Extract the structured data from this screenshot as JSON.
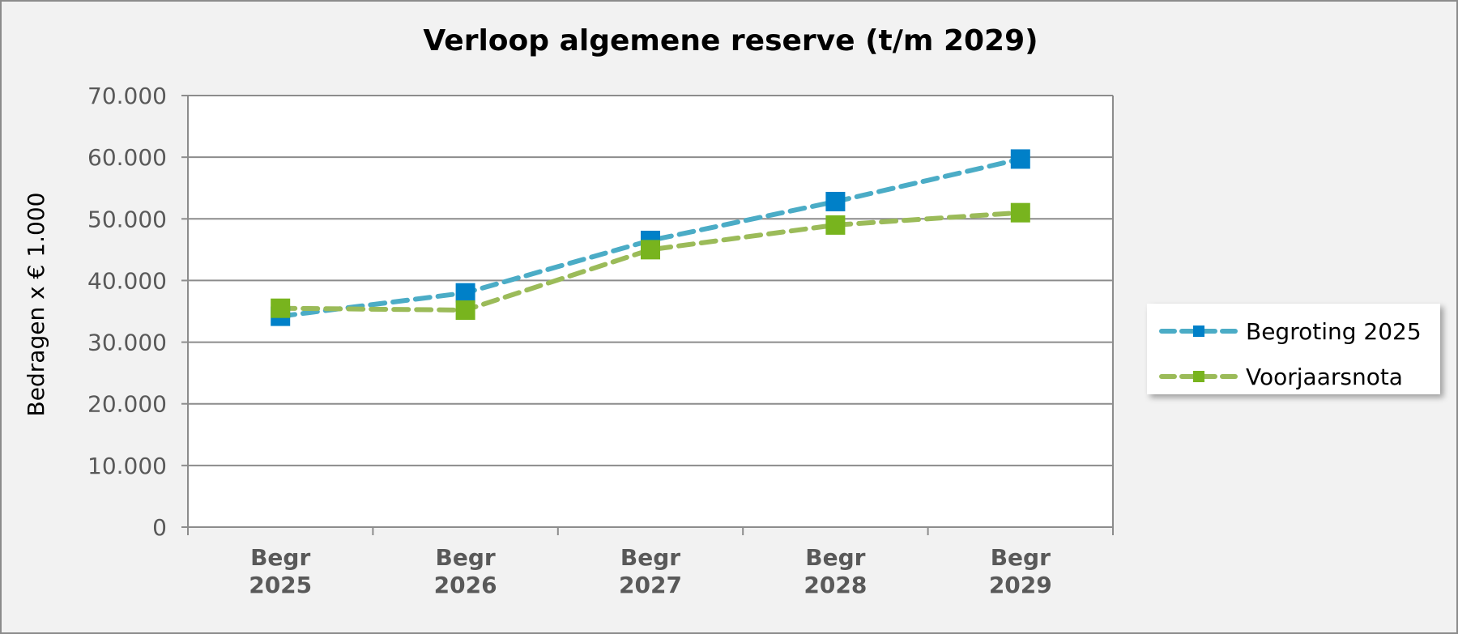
{
  "chart_data": {
    "type": "line",
    "title": "Verloop algemene reserve (t/m 2029)",
    "xlabel": "",
    "ylabel": "Bedragen x € 1.000",
    "categories": [
      "Begr 2025",
      "Begr 2026",
      "Begr 2027",
      "Begr 2028",
      "Begr 2029"
    ],
    "category_lines": [
      [
        "Begr",
        "2025"
      ],
      [
        "Begr",
        "2026"
      ],
      [
        "Begr",
        "2027"
      ],
      [
        "Begr",
        "2028"
      ],
      [
        "Begr",
        "2029"
      ]
    ],
    "ylim": [
      0,
      70000
    ],
    "yticks": [
      0,
      10000,
      20000,
      30000,
      40000,
      50000,
      60000,
      70000
    ],
    "ytick_labels": [
      "0",
      "10.000",
      "20.000",
      "30.000",
      "40.000",
      "50.000",
      "60.000",
      "70.000"
    ],
    "grid": true,
    "legend_position": "right",
    "series": [
      {
        "name": "Begroting 2025",
        "values": [
          34200,
          38000,
          46500,
          52800,
          59700
        ],
        "line_color": "#4bacc6",
        "marker_color": "#0080c8",
        "line_style": "dashed",
        "marker": "square"
      },
      {
        "name": "Voorjaarsnota",
        "values": [
          35500,
          35200,
          45000,
          49000,
          51000
        ],
        "line_color": "#9bbb59",
        "marker_color": "#78b41e",
        "line_style": "dashed",
        "marker": "square"
      }
    ]
  }
}
